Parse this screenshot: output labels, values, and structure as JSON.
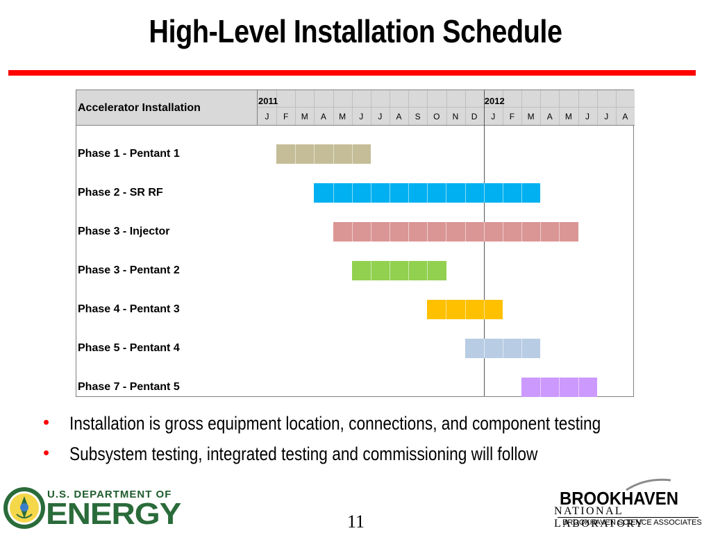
{
  "slide": {
    "title": "High-Level Installation Schedule",
    "page_number": "11"
  },
  "gantt": {
    "header_label": "Accelerator Installation",
    "years": [
      {
        "label": "2011",
        "start_month_index": 0
      },
      {
        "label": "2012",
        "start_month_index": 12
      }
    ],
    "months": [
      "J",
      "F",
      "M",
      "A",
      "M",
      "J",
      "J",
      "A",
      "S",
      "O",
      "N",
      "D",
      "J",
      "F",
      "M",
      "A",
      "M",
      "J",
      "J",
      "A"
    ],
    "tasks": [
      {
        "label": "Phase 1 - Pentant 1",
        "start": 1,
        "end": 6,
        "color": "#c4bd97"
      },
      {
        "label": "Phase 2 - SR RF",
        "start": 3,
        "end": 15,
        "color": "#00b0f0"
      },
      {
        "label": "Phase 3 - Injector",
        "start": 4,
        "end": 17,
        "color": "#da9694"
      },
      {
        "label": "Phase 3 - Pentant 2",
        "start": 5,
        "end": 10,
        "color": "#92d050"
      },
      {
        "label": "Phase 4 - Pentant 3",
        "start": 9,
        "end": 13,
        "color": "#ffc000"
      },
      {
        "label": "Phase 5 - Pentant 4",
        "start": 11,
        "end": 15,
        "color": "#b8cce4"
      },
      {
        "label": "Phase 7 - Pentant 5",
        "start": 14,
        "end": 18,
        "color": "#cc99ff"
      }
    ]
  },
  "bullets": [
    "Installation is gross equipment location, connections, and component testing",
    "Subsystem testing, integrated testing and commissioning will follow"
  ],
  "footer": {
    "doe_line1": "U.S. DEPARTMENT OF",
    "doe_line2": "ENERGY",
    "bnl_name": "BROOKHAVEN",
    "bnl_sub": "NATIONAL LABORATORY",
    "bnl_assoc": "BROOKHAVEN SCIENCE ASSOCIATES"
  },
  "colors": {
    "accent_red": "#ff0000",
    "header_gray": "#d9d9d9",
    "doe_green": "#2a6b3a"
  }
}
